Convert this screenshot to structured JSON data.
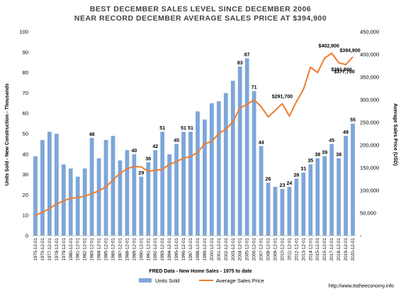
{
  "chart_data": {
    "type": "bar",
    "title": "BEST DECEMBER SALES LEVEL SINCE DECEMBER 2006",
    "subtitle": "NEAR RECORD DECEMBER AVERAGE SALES PRICE AT $394,900",
    "categories": [
      "1975-12-01",
      "1976-12-01",
      "1977-12-01",
      "1978-12-01",
      "1979-12-01",
      "1980-12-01",
      "1981-12-01",
      "1982-12-01",
      "1983-12-01",
      "1984-12-01",
      "1985-12-01",
      "1986-12-01",
      "1987-12-01",
      "1988-12-01",
      "1989-12-01",
      "1990-12-01",
      "1991-12-01",
      "1992-12-01",
      "1993-12-01",
      "1994-12-01",
      "1995-12-01",
      "1996-12-01",
      "1997-12-01",
      "1998-12-01",
      "1999-12-01",
      "2000-12-01",
      "2001-12-01",
      "2002-12-01",
      "2003-12-01",
      "2004-12-01",
      "2005-12-01",
      "2006-12-01",
      "2007-12-01",
      "2008-12-01",
      "2009-12-01",
      "2010-12-01",
      "2011-12-01",
      "2012-12-01",
      "2013-12-01",
      "2014-12-01",
      "2015-12-01",
      "2016-12-01",
      "2017-12-01",
      "2018-12-01",
      "2019-12-01",
      "2020-12-01"
    ],
    "series": [
      {
        "name": "Units Sold",
        "type": "bar",
        "axis": "left",
        "color": "#7ea6d8",
        "values": [
          39,
          47,
          51,
          50,
          35,
          33,
          29,
          33,
          48,
          38,
          47,
          49,
          37,
          42,
          40,
          29,
          36,
          42,
          51,
          40,
          45,
          51,
          51,
          61,
          57,
          65,
          66,
          70,
          76,
          83,
          87,
          71,
          44,
          26,
          24,
          23,
          24,
          28,
          31,
          35,
          38,
          39,
          45,
          38,
          49,
          55
        ],
        "labeled": {
          "8": "48",
          "14": "40",
          "15": "29",
          "16": "36",
          "17": "42",
          "18": "51",
          "20": "45",
          "21": "51",
          "22": "51",
          "29": "83",
          "30": "87",
          "31": "71",
          "32": "44",
          "33": "26",
          "35": "23",
          "36": "24",
          "37": "28",
          "38": "31",
          "39": "35",
          "40": "38",
          "41": "39",
          "42": "45",
          "43": "38",
          "44": "49",
          "45": "55"
        }
      },
      {
        "name": "Average Sales Price",
        "type": "line",
        "axis": "right",
        "color": "#ed7d31",
        "values": [
          45000,
          52000,
          60000,
          70000,
          77000,
          83000,
          84000,
          88000,
          93000,
          99000,
          108000,
          123000,
          138000,
          148000,
          153000,
          152000,
          142000,
          145000,
          146000,
          158000,
          164000,
          171000,
          175000,
          184000,
          203000,
          208000,
          226000,
          235000,
          252000,
          282000,
          290000,
          300000,
          285000,
          262000,
          277000,
          291700,
          264000,
          296000,
          323000,
          372000,
          360000,
          392000,
          402900,
          381800,
          377700,
          394900
        ],
        "labeled": {
          "35": "$291,700",
          "42": "$402,900",
          "43": "$381,800",
          "44": "$377,700",
          "45": "$394,900"
        }
      }
    ],
    "y_left": {
      "label": "Units Sold - New Construction - Thousands",
      "min": 0,
      "max": 100,
      "step": 10
    },
    "y_right": {
      "label": "Average Sales Price (USD)",
      "min": 0,
      "max": 450000,
      "step": 50000
    },
    "xlabel": "FRED Data - New Home Sales - 1975 to date",
    "legend_position": "bottom",
    "grid": false,
    "source_url": "http://www.itstheeconomy.info"
  }
}
